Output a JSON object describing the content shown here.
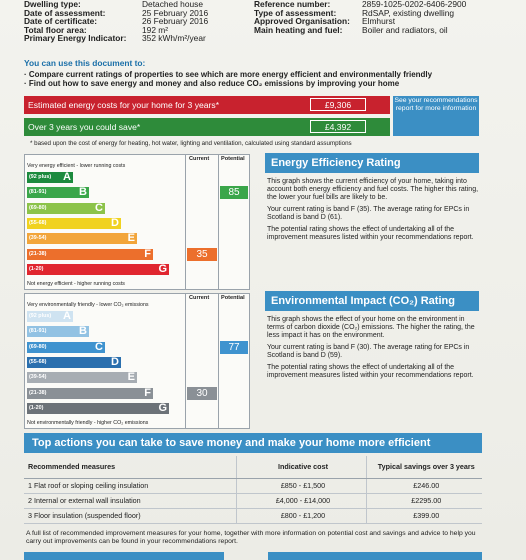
{
  "header_left": [
    {
      "key": "Dwelling type:",
      "value": "Detached house"
    },
    {
      "key": "Date of assessment:",
      "value": "25 February 2016"
    },
    {
      "key": "Date of certificate:",
      "value": "26 February 2016"
    },
    {
      "key": "Total floor area:",
      "value": "192 m²"
    },
    {
      "key": "Primary Energy Indicator:",
      "value": "352 kWh/m²/year"
    }
  ],
  "header_right": [
    {
      "key": "Reference number:",
      "value": "2859-1025-0202-6406-2900"
    },
    {
      "key": "Type of assessment:",
      "value": "RdSAP, existing dwelling"
    },
    {
      "key": "Approved Organisation:",
      "value": "Elmhurst"
    },
    {
      "key": "Main heating and fuel:",
      "value": "Boiler and radiators, oil"
    }
  ],
  "use_title": "You can use this document to:",
  "bullets": [
    "·  Compare current ratings of properties to see which are more energy efficient and environmentally friendly",
    "·  Find out how to save energy and money and also reduce CO₂ emissions by improving your home"
  ],
  "costs": {
    "estimated_label": "Estimated energy costs for your home for 3 years*",
    "estimated_value": "£9,306",
    "saving_label": "Over 3 years you could save*",
    "saving_value": "£4,392",
    "see_box": "See your recommendations report for more information",
    "based_note": "* based upon the cost of energy for heating, hot water, lighting and ventilation, calculated using standard assumptions"
  },
  "energy_chart": {
    "col_current": "Current",
    "col_potential": "Potential",
    "top_note": "Very energy efficient - lower running costs",
    "bottom_note": "Not energy efficient - higher running costs",
    "current": "35",
    "potential": "85",
    "bands": [
      {
        "range": "(92 plus)",
        "letter": "A",
        "color": "#1c8a3e"
      },
      {
        "range": "(81-91)",
        "letter": "B",
        "color": "#3aa64a"
      },
      {
        "range": "(69-80)",
        "letter": "C",
        "color": "#8cc34a"
      },
      {
        "range": "(55-68)",
        "letter": "D",
        "color": "#f0d21f"
      },
      {
        "range": "(39-54)",
        "letter": "E",
        "color": "#f2a53a"
      },
      {
        "range": "(21-38)",
        "letter": "F",
        "color": "#ec6f2c"
      },
      {
        "range": "(1-20)",
        "letter": "G",
        "color": "#e0262f"
      }
    ]
  },
  "energy_section": {
    "title": "Energy Efficiency Rating",
    "p1": "This graph shows the current efficiency of your home, taking into account both energy efficiency and fuel costs. The higher this rating, the lower your fuel bills are likely to be.",
    "p2": "Your current rating is band F (35). The average rating for EPCs in Scotland is band D (61).",
    "p3": "The potential rating shows the effect of undertaking all of the improvement measures listed within your recommendations report."
  },
  "env_chart": {
    "col_current": "Current",
    "col_potential": "Potential",
    "top_note": "Very environmentally friendly - lower CO₂ emissions",
    "bottom_note": "Not environmentally friendly - higher CO₂ emissions",
    "current": "30",
    "potential": "77",
    "bands": [
      {
        "range": "(92 plus)",
        "letter": "A",
        "color": "#cfe3f1"
      },
      {
        "range": "(81-91)",
        "letter": "B",
        "color": "#92c2e3"
      },
      {
        "range": "(69-80)",
        "letter": "C",
        "color": "#3f93cf"
      },
      {
        "range": "(55-68)",
        "letter": "D",
        "color": "#2a6fae"
      },
      {
        "range": "(39-54)",
        "letter": "E",
        "color": "#a7adb3"
      },
      {
        "range": "(21-38)",
        "letter": "F",
        "color": "#8a9096"
      },
      {
        "range": "(1-20)",
        "letter": "G",
        "color": "#6c7278"
      }
    ]
  },
  "env_section": {
    "title": "Environmental Impact (CO₂) Rating",
    "p1": "This graph shows the effect of your home on the environment in terms of carbon dioxide (CO₂) emissions. The higher the rating, the less impact it has on the environment.",
    "p2": "Your current rating is band F (30). The average rating for EPCs in Scotland is band D (59).",
    "p3": "The potential rating shows the effect of undertaking all of the improvement measures listed within your recommendations report."
  },
  "actions": {
    "title": "Top actions you can take to save money and make your home more efficient",
    "col_measure": "Recommended measures",
    "col_cost": "Indicative cost",
    "col_saving": "Typical savings over 3 years",
    "rows": [
      {
        "measure": "1 Flat roof or sloping ceiling insulation",
        "cost": "£850 - £1,500",
        "saving": "£246.00"
      },
      {
        "measure": "2 Internal or external wall insulation",
        "cost": "£4,000 - £14,000",
        "saving": "£2295.00"
      },
      {
        "measure": "3 Floor insulation (suspended floor)",
        "cost": "£800 - £1,200",
        "saving": "£399.00"
      }
    ],
    "footer": "A full list of recommended improvement measures for your home, together with more information on potential cost and savings and advice to help you carry out improvements can be found in your recommendations report."
  }
}
